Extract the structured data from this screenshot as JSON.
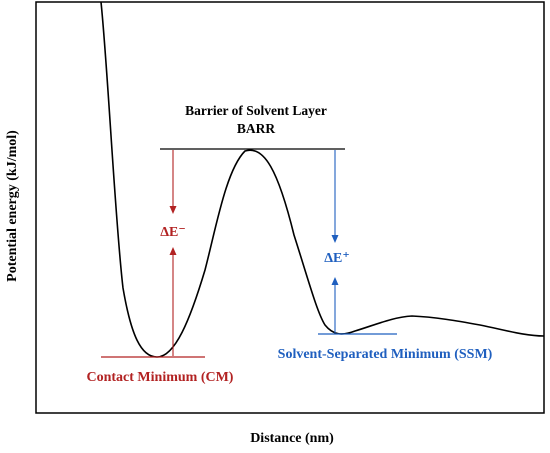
{
  "chart_data": {
    "type": "line",
    "title": "",
    "xlabel": "Distance (nm)",
    "ylabel": "Potential energy (kJ/mol)",
    "grid": false,
    "legend": "none",
    "annotations": {
      "barrier_line1": "Barrier of Solvent Layer",
      "barrier_line2": "BARR",
      "delta_e_minus": "ΔE⁻",
      "delta_e_plus": "ΔE⁺",
      "cm": "Contact Minimum (CM)",
      "ssm": "Solvent-Separated Minimum (SSM)"
    },
    "colors": {
      "curve": "#000000",
      "cm": "#b22222",
      "ssm": "#1f5fbf"
    }
  }
}
